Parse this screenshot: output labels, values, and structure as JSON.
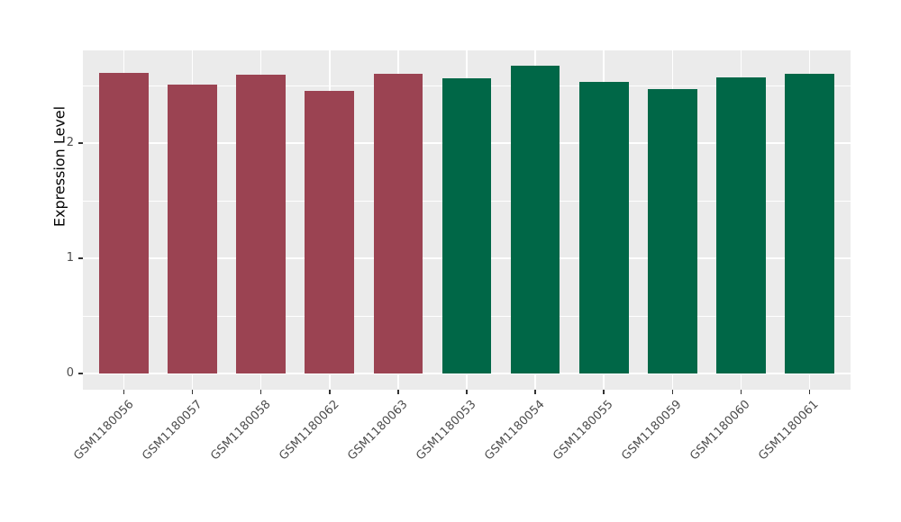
{
  "figure": {
    "background": "#ffffff"
  },
  "panel": {
    "background": "#ebebeb",
    "grid_color": "#ffffff"
  },
  "axis": {
    "text_color": "#4d4d4d",
    "title_color": "#000000",
    "tick_color": "#333333"
  },
  "chart_data": {
    "type": "bar",
    "title": "",
    "xlabel": "",
    "ylabel": "Expression Level",
    "ylim": [
      0,
      2.81
    ],
    "grid": true,
    "legend_position": "none",
    "yticks": [
      {
        "value": 0,
        "label": "0"
      },
      {
        "value": 1,
        "label": "1"
      },
      {
        "value": 2,
        "label": "2"
      }
    ],
    "yminor": [
      0.5,
      1.5,
      2.5
    ],
    "categories": [
      "GSM1180056",
      "GSM1180057",
      "GSM1180058",
      "GSM1180062",
      "GSM1180063",
      "GSM1180053",
      "GSM1180054",
      "GSM1180055",
      "GSM1180059",
      "GSM1180060",
      "GSM1180061"
    ],
    "values": [
      2.61,
      2.51,
      2.59,
      2.45,
      2.6,
      2.56,
      2.67,
      2.53,
      2.47,
      2.57,
      2.6
    ],
    "groups": [
      "maroon",
      "maroon",
      "maroon",
      "maroon",
      "maroon",
      "green",
      "green",
      "green",
      "green",
      "green",
      "green"
    ],
    "group_colors": {
      "maroon": "#9b4352",
      "green": "#006747"
    }
  }
}
